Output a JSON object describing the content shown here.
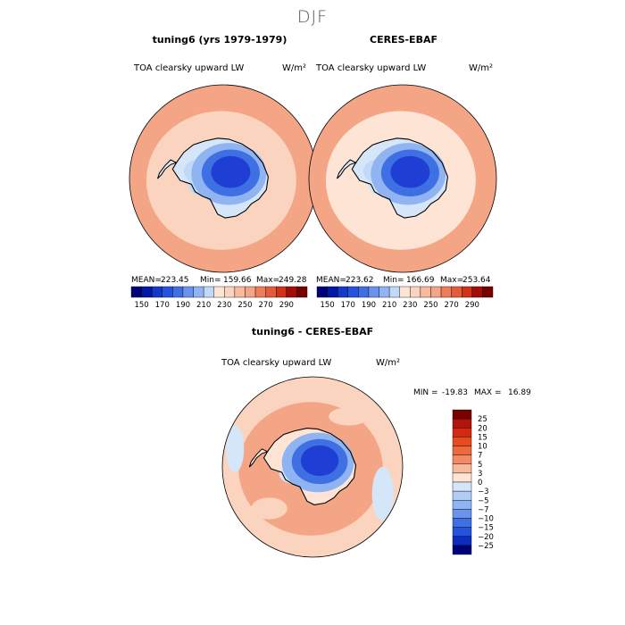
{
  "figure": {
    "season": "DJF",
    "colors": {
      "coast": "#000000",
      "land_no_data": "#ffffff"
    }
  },
  "chart_data": [
    {
      "type": "heatmap",
      "projection": "south-polar-stereographic",
      "title": "tuning6 (yrs 1979-1979)",
      "variable": "TOA clearsky upward LW",
      "units": "W/m²",
      "stats": {
        "mean_label": "MEAN=",
        "mean": "223.45",
        "min_label": "Min=",
        "min": "159.66",
        "max_label": "Max=",
        "max": "249.28"
      },
      "fields": {
        "ocean_outer": "#f4a585",
        "ocean_ring": "#fbd4bf",
        "ice_shelf_ross": "#c0d9f6",
        "ice_shelf_weddell": "#c0d9f6",
        "plateau_edge": "#8fb4f1",
        "plateau_mid": "#3f70e3",
        "plateau_core": "#1f3fd4",
        "coast_margin": "#d6e6f9"
      }
    },
    {
      "type": "heatmap",
      "projection": "south-polar-stereographic",
      "title": "CERES-EBAF",
      "variable": "TOA clearsky upward LW",
      "units": "W/m²",
      "stats": {
        "mean_label": "MEAN=",
        "mean": "223.62",
        "min_label": "Min=",
        "min": "166.69",
        "max_label": "Max=",
        "max": "253.64"
      },
      "fields": {
        "ocean_outer": "#f4a585",
        "ocean_ring": "#fde4d5",
        "ice_shelf_ross": "#d5e6f8",
        "ice_shelf_weddell": "#c0d9f6",
        "plateau_edge": "#8fb4f1",
        "plateau_mid": "#3f70e3",
        "plateau_core": "#1f3fd4",
        "coast_margin": "#d6e6f9"
      }
    },
    {
      "type": "heatmap",
      "projection": "south-polar-stereographic",
      "title": "tuning6 - CERES-EBAF",
      "variable": "TOA clearsky upward LW",
      "units": "W/m²",
      "stats": {
        "min_label": "MIN =",
        "min": "-19.83",
        "max_label": "MAX =",
        "max": "16.89"
      },
      "fields": {
        "ocean_outer": "#fbd4bf",
        "ocean_ring": "#f4a585",
        "ice_shelf_ross": "#d5e6f8",
        "ice_shelf_weddell": "#fde4d5",
        "plateau_edge": "#8fb4f1",
        "plateau_mid": "#3f70e3",
        "plateau_core": "#1f3fd4",
        "coast_margin": "#fde4d5"
      }
    }
  ],
  "colorbars": {
    "absolute": {
      "orientation": "horizontal",
      "tick_labels": [
        "150",
        "170",
        "190",
        "210",
        "230",
        "250",
        "270",
        "290"
      ],
      "colors": [
        "#00007a",
        "#0018a8",
        "#1438c8",
        "#2453de",
        "#3f70e3",
        "#6a93ee",
        "#8fb4f1",
        "#c0d9f6",
        "#fde4d5",
        "#fbd4bf",
        "#f8b99c",
        "#f4a585",
        "#ee7d5c",
        "#e65a3c",
        "#cf3218",
        "#a40c0c",
        "#7a0000"
      ]
    },
    "difference": {
      "orientation": "vertical",
      "tick_labels": [
        "25",
        "20",
        "15",
        "10",
        "7",
        "5",
        "3",
        "0",
        "−3",
        "−5",
        "−7",
        "−10",
        "−15",
        "−20",
        "−25"
      ],
      "colors": [
        "#7a0000",
        "#b0140d",
        "#d22a10",
        "#e84c1e",
        "#ee6a3c",
        "#f48a64",
        "#f8b99c",
        "#fde4d5",
        "#d5e6f8",
        "#b0cdf4",
        "#8fb4f1",
        "#6a93ee",
        "#3f70e3",
        "#2453de",
        "#0c2cbc",
        "#00007a"
      ]
    }
  }
}
